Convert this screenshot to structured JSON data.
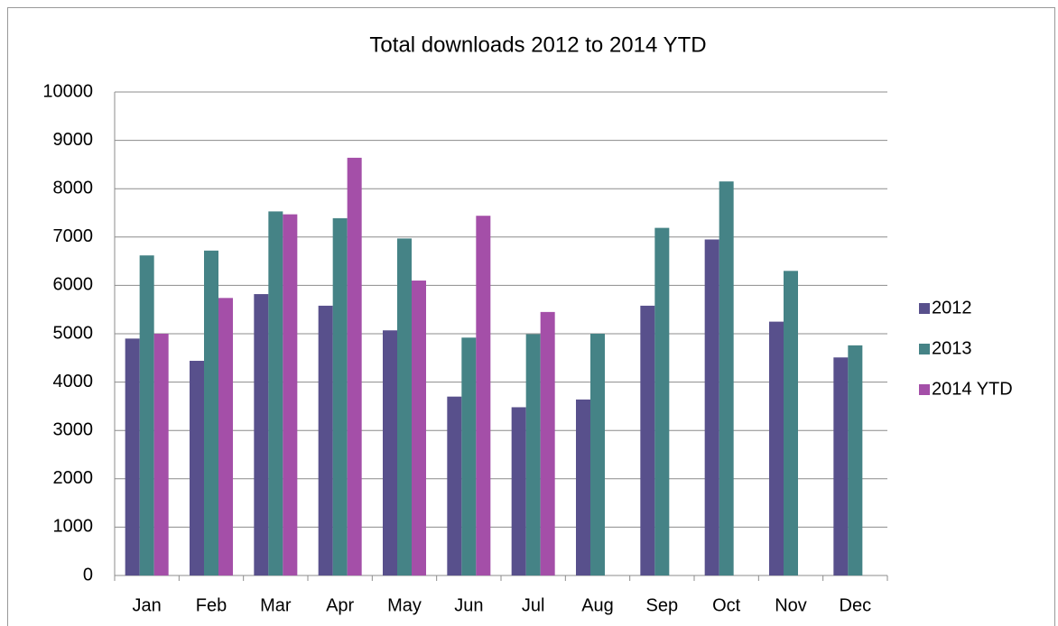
{
  "chart_data": {
    "type": "bar",
    "title": "Total downloads 2012 to 2014 YTD",
    "categories": [
      "Jan",
      "Feb",
      "Mar",
      "Apr",
      "May",
      "Jun",
      "Jul",
      "Aug",
      "Sep",
      "Oct",
      "Nov",
      "Dec"
    ],
    "series": [
      {
        "name": "2012",
        "color": "#58508c",
        "values": [
          4900,
          4440,
          5820,
          5580,
          5070,
          3700,
          3480,
          3640,
          5580,
          6950,
          5250,
          4510
        ]
      },
      {
        "name": "2013",
        "color": "#458386",
        "values": [
          6620,
          6720,
          7530,
          7390,
          6970,
          4920,
          4990,
          5000,
          7190,
          8150,
          6300,
          4760
        ]
      },
      {
        "name": "2014 YTD",
        "color": "#a44fa8",
        "values": [
          5000,
          5740,
          7470,
          8640,
          6100,
          7440,
          5450,
          null,
          null,
          null,
          null,
          null
        ]
      }
    ],
    "ylim": [
      0,
      10000
    ],
    "yticks": [
      0,
      1000,
      2000,
      3000,
      4000,
      5000,
      6000,
      7000,
      8000,
      9000,
      10000
    ],
    "grid": true,
    "legend": "right"
  }
}
